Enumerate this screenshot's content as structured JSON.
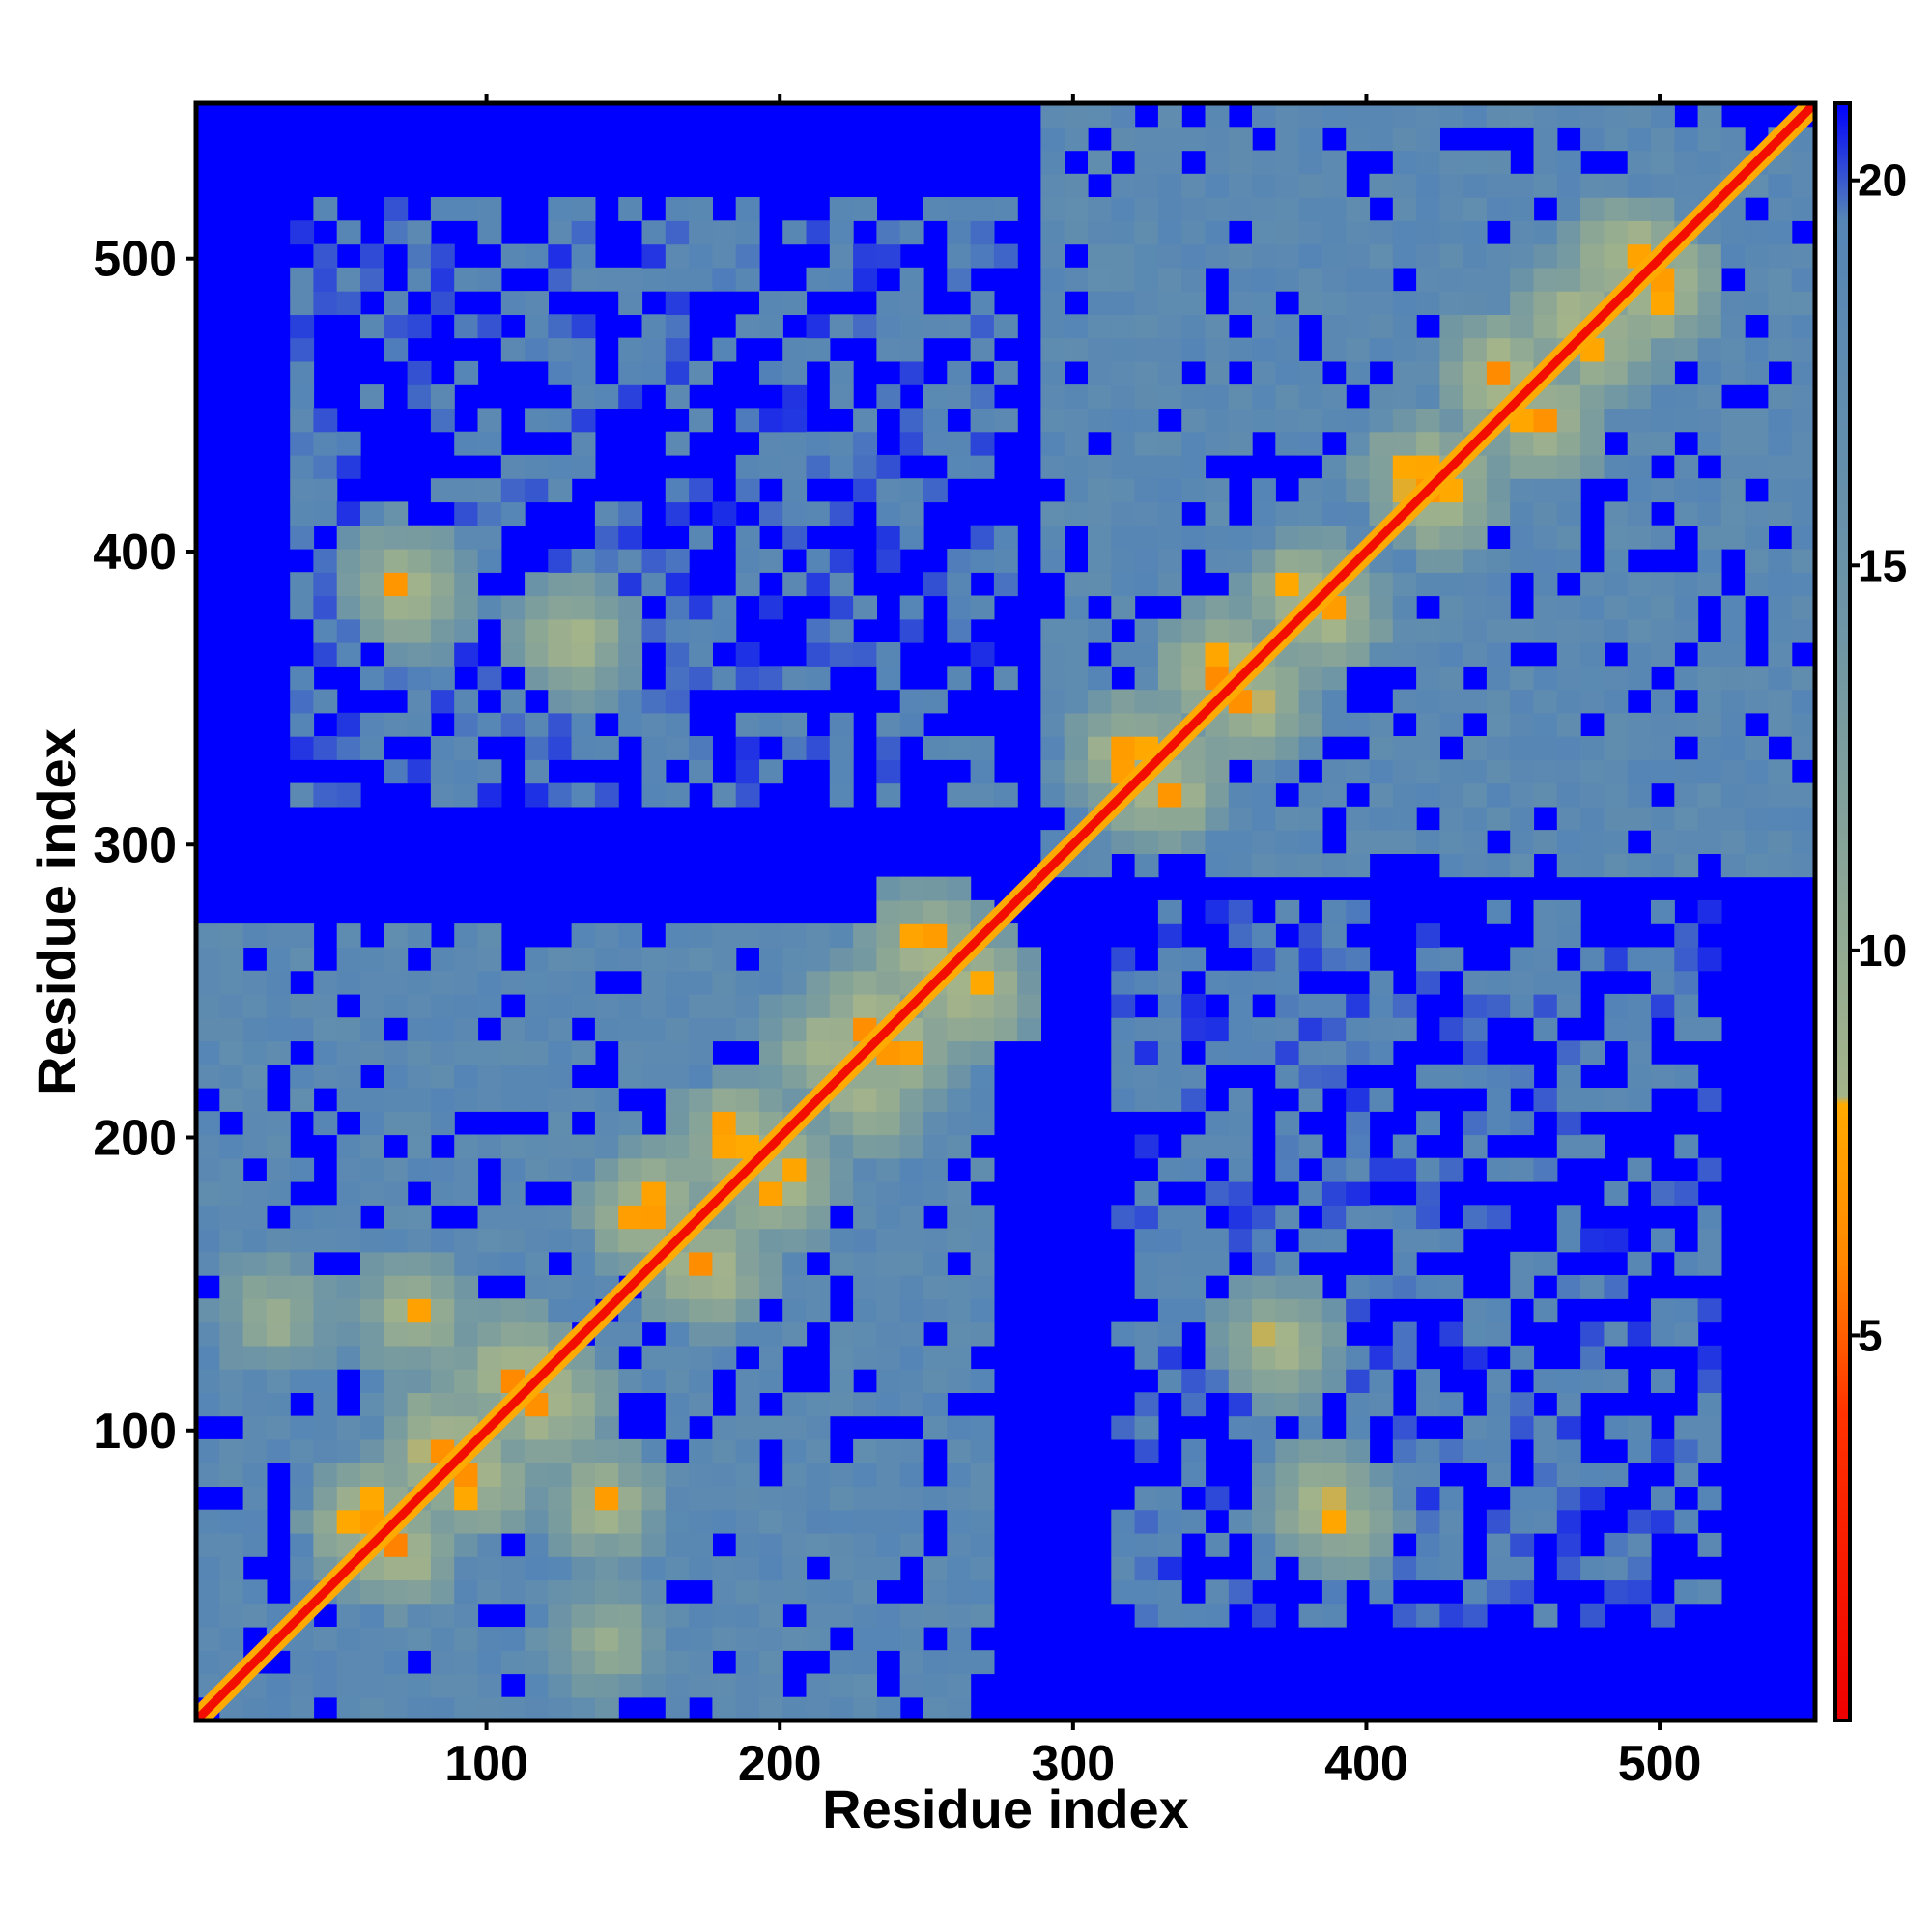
{
  "chart_data": {
    "type": "heatmap",
    "title": "",
    "xlabel": "Residue index",
    "ylabel": "Residue index",
    "xlim": [
      1,
      553
    ],
    "ylim": [
      1,
      553
    ],
    "x_ticks": [
      100,
      200,
      300,
      400,
      500
    ],
    "y_ticks": [
      100,
      200,
      300,
      400,
      500
    ],
    "x_tick_labels": [
      "100",
      "200",
      "300",
      "400",
      "500"
    ],
    "y_tick_labels": [
      "100",
      "200",
      "300",
      "400",
      "500"
    ],
    "colorbar": {
      "range": [
        0,
        21
      ],
      "ticks": [
        5,
        10,
        15,
        20
      ],
      "tick_labels": [
        "5",
        "10",
        "15",
        "20"
      ],
      "colors": [
        {
          "value": 0,
          "color": "#ee0000"
        },
        {
          "value": 4,
          "color": "#ff3300"
        },
        {
          "value": 6,
          "color": "#ff8800"
        },
        {
          "value": 8,
          "color": "#ffaa00"
        },
        {
          "value": 8.1,
          "color": "#a4b48a"
        },
        {
          "value": 14,
          "color": "#6f96a4"
        },
        {
          "value": 19.5,
          "color": "#5585b6"
        },
        {
          "value": 21,
          "color": "#0000ff"
        }
      ]
    },
    "background_value": 21,
    "diagonal": {
      "from": 1,
      "to": 553,
      "value": 1
    },
    "domains": [
      {
        "name": "",
        "start": 1,
        "end": 275,
        "interior_value": 17
      },
      {
        "name": "",
        "start": 293,
        "end": 553,
        "interior_value": 17
      }
    ],
    "interdomain_region": {
      "x_range": [
        30,
        280
      ],
      "y_range": [
        310,
        520
      ],
      "value": 18
    },
    "contact_bands": [
      {
        "x": 70,
        "y": 60,
        "value": 5
      },
      {
        "x": 85,
        "y": 95,
        "value": 5
      },
      {
        "x": 120,
        "y": 110,
        "value": 5
      },
      {
        "x": 140,
        "y": 75,
        "value": 6
      },
      {
        "x": 175,
        "y": 155,
        "value": 5
      },
      {
        "x": 200,
        "y": 185,
        "value": 5
      },
      {
        "x": 230,
        "y": 240,
        "value": 5
      },
      {
        "x": 250,
        "y": 265,
        "value": 5
      },
      {
        "x": 215,
        "y": 230,
        "value": 6
      },
      {
        "x": 330,
        "y": 320,
        "value": 5
      },
      {
        "x": 360,
        "y": 350,
        "value": 5
      },
      {
        "x": 380,
        "y": 385,
        "value": 5
      },
      {
        "x": 420,
        "y": 425,
        "value": 5
      },
      {
        "x": 445,
        "y": 460,
        "value": 5
      },
      {
        "x": 490,
        "y": 500,
        "value": 5
      },
      {
        "x": 470,
        "y": 480,
        "value": 6
      },
      {
        "x": 70,
        "y": 390,
        "value": 6
      },
      {
        "x": 130,
        "y": 370,
        "value": 6
      },
      {
        "x": 370,
        "y": 130,
        "value": 6
      },
      {
        "x": 385,
        "y": 75,
        "value": 6
      },
      {
        "x": 140,
        "y": 28,
        "value": 7
      }
    ],
    "grid": false,
    "legend": "colorbar-right"
  }
}
